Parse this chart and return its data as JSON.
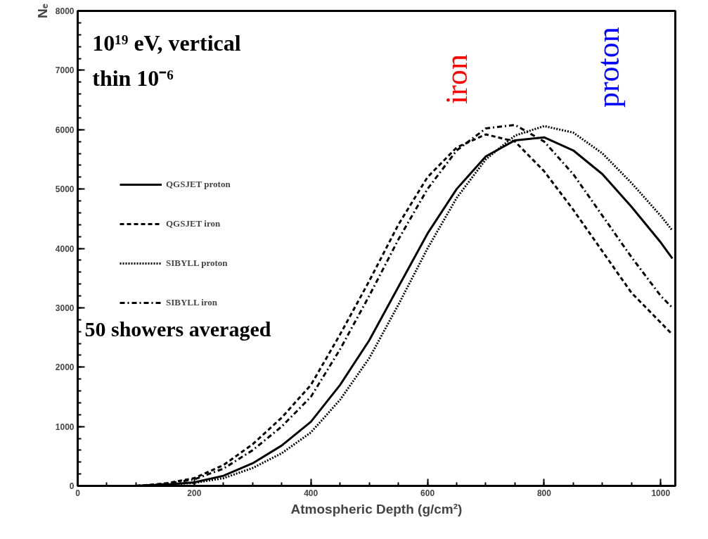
{
  "chart_data": {
    "type": "line",
    "xlabel": "Atmospheric Depth (g/cm²)",
    "ylabel": "Nₑ",
    "xlim": [
      0,
      1025
    ],
    "ylim": [
      0,
      8000
    ],
    "xticks": [
      0,
      200,
      400,
      600,
      800,
      1000
    ],
    "yticks": [
      0,
      1000,
      2000,
      3000,
      4000,
      5000,
      6000,
      7000,
      8000
    ],
    "grid": false,
    "legend": "top left",
    "marker": "none",
    "annotations": [
      "10¹⁹ eV, vertical",
      "thin 10⁻⁶",
      "50 showers averaged",
      "iron",
      "proton"
    ],
    "x": [
      100,
      150,
      200,
      250,
      300,
      350,
      400,
      450,
      500,
      550,
      600,
      650,
      700,
      750,
      800,
      850,
      900,
      950,
      1000,
      1020
    ],
    "series": [
      {
        "name": "QGSJET proton",
        "color": "#000000",
        "line_style": "solid",
        "values": [
          0,
          20,
          60,
          170,
          380,
          680,
          1080,
          1700,
          2450,
          3350,
          4250,
          5000,
          5550,
          5820,
          5870,
          5650,
          5250,
          4700,
          4100,
          3830
        ]
      },
      {
        "name": "QGSJET iron",
        "color": "#000000",
        "line_style": "dashed",
        "values": [
          0,
          40,
          130,
          350,
          700,
          1150,
          1700,
          2550,
          3450,
          4400,
          5200,
          5700,
          5920,
          5800,
          5300,
          4650,
          3950,
          3250,
          2750,
          2550
        ]
      },
      {
        "name": "SIBYLL proton",
        "color": "#000000",
        "line_style": "dotted",
        "values": [
          0,
          20,
          50,
          130,
          300,
          550,
          900,
          1450,
          2150,
          3050,
          4000,
          4850,
          5500,
          5900,
          6060,
          5950,
          5600,
          5100,
          4550,
          4300
        ]
      },
      {
        "name": "SIBYLL iron",
        "color": "#000000",
        "line_style": "dashdot",
        "values": [
          0,
          30,
          110,
          290,
          600,
          1000,
          1500,
          2300,
          3200,
          4150,
          5000,
          5650,
          6020,
          6080,
          5800,
          5250,
          4550,
          3850,
          3200,
          3000
        ]
      }
    ]
  }
}
